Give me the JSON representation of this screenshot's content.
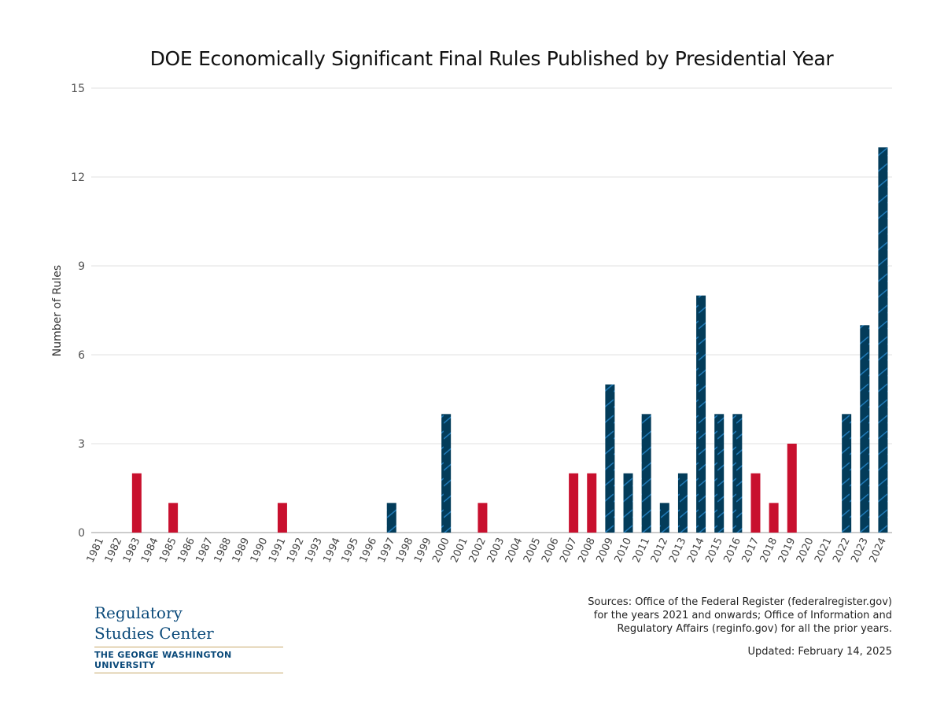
{
  "chart_data": {
    "type": "bar",
    "title": "DOE Economically Significant Final Rules Published by Presidential Year",
    "xlabel": "",
    "ylabel": "Number of Rules",
    "ylim": [
      0,
      15
    ],
    "yticks": [
      0,
      3,
      6,
      9,
      12,
      15
    ],
    "grid": true,
    "categories": [
      "1981",
      "1982",
      "1983",
      "1984",
      "1985",
      "1986",
      "1987",
      "1988",
      "1989",
      "1990",
      "1991",
      "1992",
      "1993",
      "1994",
      "1995",
      "1996",
      "1997",
      "1998",
      "1999",
      "2000",
      "2001",
      "2002",
      "2003",
      "2004",
      "2005",
      "2006",
      "2007",
      "2008",
      "2009",
      "2010",
      "2011",
      "2012",
      "2013",
      "2014",
      "2015",
      "2016",
      "2017",
      "2018",
      "2019",
      "2020",
      "2021",
      "2022",
      "2023",
      "2024"
    ],
    "values": [
      0,
      0,
      2,
      0,
      1,
      0,
      0,
      0,
      0,
      0,
      1,
      0,
      0,
      0,
      0,
      0,
      1,
      0,
      0,
      4,
      0,
      1,
      0,
      0,
      0,
      0,
      2,
      2,
      5,
      2,
      4,
      1,
      2,
      8,
      4,
      4,
      2,
      1,
      3,
      0,
      0,
      4,
      7,
      13
    ],
    "party": [
      "R",
      "R",
      "R",
      "R",
      "R",
      "R",
      "R",
      "R",
      "R",
      "R",
      "R",
      "R",
      "D",
      "D",
      "D",
      "D",
      "D",
      "D",
      "D",
      "D",
      "R",
      "R",
      "R",
      "R",
      "R",
      "R",
      "R",
      "R",
      "D",
      "D",
      "D",
      "D",
      "D",
      "D",
      "D",
      "D",
      "R",
      "R",
      "R",
      "R",
      "D",
      "D",
      "D",
      "D"
    ],
    "colors": {
      "R": "#c8102e",
      "D": "#033c5a",
      "D_hatch": "#1f78b4"
    }
  },
  "footer": {
    "sources": [
      "Sources: Office of the Federal Register (federalregister.gov)",
      "for the years 2021 and onwards; Office of Information and",
      "Regulatory Affairs (reginfo.gov) for all the prior years."
    ],
    "updated": "Updated: February 14, 2025"
  },
  "logo": {
    "line1": "Regulatory",
    "line2": "Studies Center",
    "line3": "THE GEORGE WASHINGTON UNIVERSITY"
  }
}
